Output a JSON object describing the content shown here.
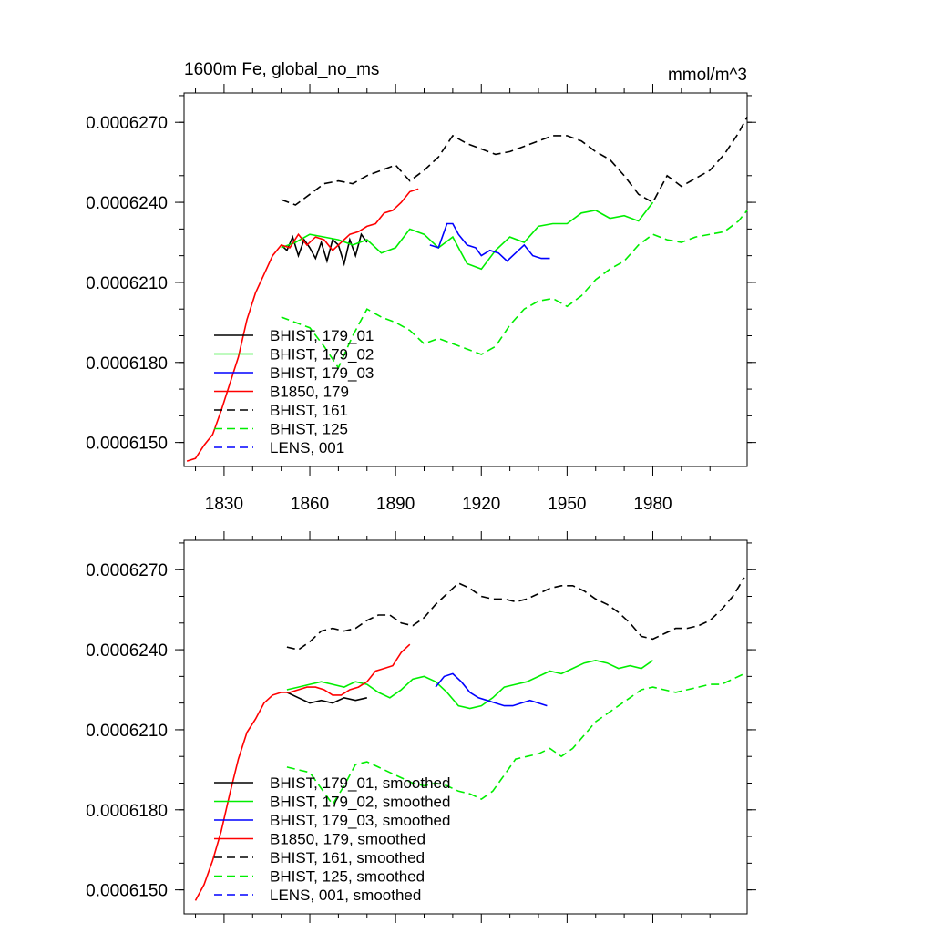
{
  "chart_data": [
    {
      "type": "line",
      "title_left": "1600m Fe, global_no_ms",
      "title_right": "mmol/m^3",
      "xlim": [
        1816,
        2013
      ],
      "ylim": [
        0.0006141,
        0.0006281
      ],
      "xticks": [
        1830,
        1860,
        1890,
        1920,
        1950,
        1980
      ],
      "xtick_labels": [
        "1830",
        "1860",
        "1890",
        "1920",
        "1950",
        "1980"
      ],
      "yticks": [
        0.000615,
        0.000618,
        0.000621,
        0.000624,
        0.000627
      ],
      "ytick_labels": [
        "0.0006150",
        "0.0006180",
        "0.0006210",
        "0.0006240",
        "0.0006270"
      ],
      "legend_position": "bottom-left",
      "series": [
        {
          "name": "BHIST, 179_01",
          "color": "#000000",
          "dash": "solid",
          "x": [
            1850,
            1852,
            1854,
            1856,
            1858,
            1860,
            1862,
            1864,
            1866,
            1868,
            1870,
            1872,
            1874,
            1876,
            1878,
            1880
          ],
          "y": [
            0.0006224,
            0.0006222,
            0.0006227,
            0.000622,
            0.0006226,
            0.0006223,
            0.0006219,
            0.0006225,
            0.0006218,
            0.0006226,
            0.0006224,
            0.0006217,
            0.0006226,
            0.000622,
            0.0006228,
            0.0006225
          ]
        },
        {
          "name": "BHIST, 179_02",
          "color": "#00ee00",
          "dash": "solid",
          "x": [
            1850,
            1855,
            1860,
            1865,
            1870,
            1875,
            1880,
            1885,
            1890,
            1895,
            1900,
            1905,
            1910,
            1915,
            1920,
            1925,
            1930,
            1935,
            1940,
            1945,
            1950,
            1955,
            1960,
            1965,
            1970,
            1975,
            1980
          ],
          "y": [
            0.0006223,
            0.0006225,
            0.0006228,
            0.0006227,
            0.0006226,
            0.0006224,
            0.0006226,
            0.0006221,
            0.0006223,
            0.000623,
            0.0006228,
            0.0006223,
            0.0006227,
            0.0006217,
            0.0006215,
            0.0006222,
            0.0006227,
            0.0006225,
            0.0006231,
            0.0006232,
            0.0006232,
            0.0006236,
            0.0006237,
            0.0006234,
            0.0006235,
            0.0006233,
            0.000624
          ]
        },
        {
          "name": "BHIST, 179_03",
          "color": "#0000ff",
          "dash": "solid",
          "x": [
            1902,
            1905,
            1908,
            1910,
            1912,
            1915,
            1918,
            1920,
            1923,
            1926,
            1929,
            1932,
            1935,
            1938,
            1941,
            1944
          ],
          "y": [
            0.0006224,
            0.0006223,
            0.0006232,
            0.0006232,
            0.0006228,
            0.0006224,
            0.0006223,
            0.000622,
            0.0006222,
            0.0006221,
            0.0006218,
            0.0006221,
            0.0006224,
            0.000622,
            0.0006219,
            0.0006219
          ]
        },
        {
          "name": "B1850, 179",
          "color": "#ff0000",
          "dash": "solid",
          "x": [
            1817,
            1820,
            1823,
            1826,
            1829,
            1832,
            1835,
            1838,
            1841,
            1844,
            1847,
            1850,
            1853,
            1856,
            1859,
            1862,
            1865,
            1868,
            1871,
            1874,
            1877,
            1880,
            1883,
            1886,
            1889,
            1892,
            1895,
            1898
          ],
          "y": [
            0.0006143,
            0.0006144,
            0.0006149,
            0.0006153,
            0.0006162,
            0.0006172,
            0.0006182,
            0.0006196,
            0.0006206,
            0.0006213,
            0.000622,
            0.0006224,
            0.0006223,
            0.0006228,
            0.0006224,
            0.0006227,
            0.0006226,
            0.0006222,
            0.0006225,
            0.0006228,
            0.0006229,
            0.0006231,
            0.0006232,
            0.0006236,
            0.0006237,
            0.000624,
            0.0006244,
            0.0006245
          ]
        },
        {
          "name": "BHIST, 161",
          "color": "#000000",
          "dash": "dashed",
          "x": [
            1850,
            1855,
            1860,
            1865,
            1870,
            1875,
            1880,
            1885,
            1890,
            1895,
            1900,
            1905,
            1910,
            1915,
            1920,
            1925,
            1930,
            1935,
            1940,
            1945,
            1950,
            1955,
            1960,
            1965,
            1970,
            1975,
            1980,
            1985,
            1990,
            1995,
            2000,
            2005,
            2010,
            2013
          ],
          "y": [
            0.0006241,
            0.0006239,
            0.0006243,
            0.0006247,
            0.0006248,
            0.0006247,
            0.000625,
            0.0006252,
            0.0006254,
            0.0006248,
            0.0006252,
            0.0006257,
            0.0006265,
            0.0006262,
            0.000626,
            0.0006258,
            0.0006259,
            0.0006261,
            0.0006263,
            0.0006265,
            0.0006265,
            0.0006263,
            0.0006259,
            0.0006256,
            0.000625,
            0.0006243,
            0.000624,
            0.000625,
            0.0006246,
            0.0006249,
            0.0006252,
            0.0006258,
            0.0006266,
            0.0006272
          ]
        },
        {
          "name": "BHIST, 125",
          "color": "#00ee00",
          "dash": "dashed",
          "x": [
            1850,
            1855,
            1860,
            1865,
            1870,
            1875,
            1880,
            1885,
            1890,
            1895,
            1900,
            1905,
            1910,
            1915,
            1920,
            1925,
            1930,
            1935,
            1940,
            1945,
            1950,
            1955,
            1960,
            1965,
            1970,
            1975,
            1980,
            1985,
            1990,
            1995,
            2000,
            2005,
            2010,
            2013
          ],
          "y": [
            0.0006197,
            0.0006195,
            0.0006193,
            0.0006186,
            0.0006178,
            0.000619,
            0.00062,
            0.0006197,
            0.0006195,
            0.0006192,
            0.0006187,
            0.0006189,
            0.0006187,
            0.0006185,
            0.0006183,
            0.0006186,
            0.0006194,
            0.00062,
            0.0006203,
            0.0006204,
            0.0006201,
            0.0006205,
            0.0006211,
            0.0006215,
            0.0006218,
            0.0006224,
            0.0006228,
            0.0006226,
            0.0006225,
            0.0006227,
            0.0006228,
            0.0006229,
            0.0006233,
            0.0006237
          ]
        },
        {
          "name": "LENS, 001",
          "color": "#0000ff",
          "dash": "dashed",
          "x": [],
          "y": []
        }
      ]
    },
    {
      "type": "line",
      "xlim": [
        1816,
        2013
      ],
      "ylim": [
        0.0006141,
        0.0006281
      ],
      "xticks": [
        1830,
        1860,
        1890,
        1920,
        1950,
        1980
      ],
      "yticks": [
        0.000615,
        0.000618,
        0.000621,
        0.000624,
        0.000627
      ],
      "ytick_labels": [
        "0.0006150",
        "0.0006180",
        "0.0006210",
        "0.0006240",
        "0.0006270"
      ],
      "legend_position": "bottom-left",
      "series": [
        {
          "name": "BHIST, 179_01, smoothed",
          "color": "#000000",
          "dash": "solid",
          "x": [
            1852,
            1856,
            1860,
            1864,
            1868,
            1872,
            1876,
            1880
          ],
          "y": [
            0.0006224,
            0.0006222,
            0.000622,
            0.0006221,
            0.000622,
            0.0006222,
            0.0006221,
            0.0006222
          ]
        },
        {
          "name": "BHIST, 179_02, smoothed",
          "color": "#00ee00",
          "dash": "solid",
          "x": [
            1852,
            1856,
            1860,
            1864,
            1868,
            1872,
            1876,
            1880,
            1884,
            1888,
            1892,
            1896,
            1900,
            1904,
            1908,
            1912,
            1916,
            1920,
            1924,
            1928,
            1932,
            1936,
            1940,
            1944,
            1948,
            1952,
            1956,
            1960,
            1964,
            1968,
            1972,
            1976,
            1980
          ],
          "y": [
            0.0006225,
            0.0006226,
            0.0006227,
            0.0006228,
            0.0006227,
            0.0006226,
            0.0006228,
            0.0006227,
            0.0006224,
            0.0006222,
            0.0006225,
            0.0006229,
            0.000623,
            0.0006228,
            0.0006224,
            0.0006219,
            0.0006218,
            0.0006219,
            0.0006222,
            0.0006226,
            0.0006227,
            0.0006228,
            0.000623,
            0.0006232,
            0.0006231,
            0.0006233,
            0.0006235,
            0.0006236,
            0.0006235,
            0.0006233,
            0.0006234,
            0.0006233,
            0.0006236
          ]
        },
        {
          "name": "BHIST, 179_03, smoothed",
          "color": "#0000ff",
          "dash": "solid",
          "x": [
            1904,
            1907,
            1910,
            1913,
            1916,
            1919,
            1922,
            1925,
            1928,
            1931,
            1934,
            1937,
            1940,
            1943
          ],
          "y": [
            0.0006226,
            0.000623,
            0.0006231,
            0.0006228,
            0.0006224,
            0.0006222,
            0.0006221,
            0.000622,
            0.0006219,
            0.0006219,
            0.000622,
            0.0006221,
            0.000622,
            0.0006219
          ]
        },
        {
          "name": "B1850, 179, smoothed",
          "color": "#ff0000",
          "dash": "solid",
          "x": [
            1820,
            1823,
            1826,
            1829,
            1832,
            1835,
            1838,
            1841,
            1844,
            1847,
            1850,
            1853,
            1856,
            1859,
            1862,
            1865,
            1868,
            1871,
            1874,
            1877,
            1880,
            1883,
            1886,
            1889,
            1892,
            1895
          ],
          "y": [
            0.0006146,
            0.0006152,
            0.0006161,
            0.0006172,
            0.0006186,
            0.0006199,
            0.0006209,
            0.0006214,
            0.000622,
            0.0006223,
            0.0006224,
            0.0006224,
            0.0006225,
            0.0006226,
            0.0006226,
            0.0006225,
            0.0006223,
            0.0006223,
            0.0006225,
            0.0006226,
            0.0006228,
            0.0006232,
            0.0006233,
            0.0006234,
            0.0006239,
            0.0006242
          ]
        },
        {
          "name": "BHIST, 161, smoothed",
          "color": "#000000",
          "dash": "dashed",
          "x": [
            1852,
            1856,
            1860,
            1864,
            1868,
            1872,
            1876,
            1880,
            1884,
            1888,
            1892,
            1896,
            1900,
            1904,
            1908,
            1912,
            1916,
            1920,
            1924,
            1928,
            1932,
            1936,
            1940,
            1944,
            1948,
            1952,
            1956,
            1960,
            1964,
            1968,
            1972,
            1976,
            1980,
            1984,
            1988,
            1992,
            1996,
            2000,
            2004,
            2008,
            2012
          ],
          "y": [
            0.0006241,
            0.000624,
            0.0006243,
            0.0006247,
            0.0006248,
            0.0006247,
            0.0006248,
            0.0006251,
            0.0006253,
            0.0006253,
            0.000625,
            0.0006249,
            0.0006252,
            0.0006257,
            0.0006261,
            0.0006265,
            0.0006263,
            0.000626,
            0.0006259,
            0.0006259,
            0.0006258,
            0.0006259,
            0.0006261,
            0.0006263,
            0.0006264,
            0.0006264,
            0.0006262,
            0.0006259,
            0.0006257,
            0.0006254,
            0.000625,
            0.0006245,
            0.0006244,
            0.0006246,
            0.0006248,
            0.0006248,
            0.0006249,
            0.0006251,
            0.0006255,
            0.000626,
            0.0006267
          ]
        },
        {
          "name": "BHIST, 125, smoothed",
          "color": "#00ee00",
          "dash": "dashed",
          "x": [
            1852,
            1856,
            1860,
            1864,
            1868,
            1872,
            1876,
            1880,
            1884,
            1888,
            1892,
            1896,
            1900,
            1904,
            1908,
            1912,
            1916,
            1920,
            1924,
            1928,
            1932,
            1936,
            1940,
            1944,
            1948,
            1952,
            1956,
            1960,
            1964,
            1968,
            1972,
            1976,
            1980,
            1984,
            1988,
            1992,
            1996,
            2000,
            2004,
            2008,
            2012
          ],
          "y": [
            0.0006196,
            0.0006195,
            0.0006194,
            0.0006188,
            0.0006182,
            0.0006189,
            0.0006197,
            0.0006198,
            0.0006196,
            0.0006194,
            0.0006192,
            0.000619,
            0.0006189,
            0.000619,
            0.0006189,
            0.0006187,
            0.0006186,
            0.0006184,
            0.0006187,
            0.0006193,
            0.0006199,
            0.00062,
            0.0006201,
            0.0006203,
            0.00062,
            0.0006203,
            0.0006208,
            0.0006213,
            0.0006216,
            0.0006219,
            0.0006222,
            0.0006225,
            0.0006226,
            0.0006225,
            0.0006224,
            0.0006225,
            0.0006226,
            0.0006227,
            0.0006227,
            0.0006229,
            0.0006231
          ]
        },
        {
          "name": "LENS, 001, smoothed",
          "color": "#0000ff",
          "dash": "dashed",
          "x": [],
          "y": []
        }
      ]
    }
  ]
}
